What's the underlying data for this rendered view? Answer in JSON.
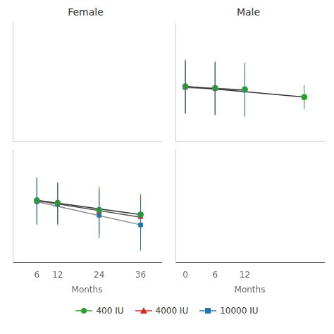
{
  "chart_data": [
    {
      "type": "scatter",
      "title": "Female",
      "xlabel": "Months",
      "x": [
        6,
        12,
        24,
        36
      ],
      "xlim": [
        -1,
        42
      ],
      "xticks": [
        6,
        12,
        24,
        36
      ],
      "ylim": [
        0.58,
        1.45
      ],
      "grid": false,
      "tick_labels": "x",
      "series": [
        {
          "name": "400 IU",
          "color": "#2ca02c",
          "marker": "circle",
          "values": [
            1.06,
            1.04,
            0.985,
            0.95
          ],
          "yerr_low": [
            0.18,
            0.16,
            0.18,
            0.16
          ],
          "yerr_high": [
            0.18,
            0.16,
            0.18,
            0.16
          ]
        },
        {
          "name": "4000 IU",
          "color": "#d62728",
          "marker": "triangle",
          "values": [
            1.058,
            1.038,
            0.97,
            0.93
          ],
          "yerr_low": [
            0.18,
            0.16,
            0.18,
            0.16
          ],
          "yerr_high": [
            0.18,
            0.16,
            0.18,
            0.16
          ]
        },
        {
          "name": "10000 IU",
          "color": "#1f77b4",
          "marker": "square",
          "values": [
            1.05,
            1.028,
            0.945,
            0.87
          ],
          "yerr_low": [
            0.18,
            0.16,
            0.18,
            0.2
          ],
          "yerr_high": [
            0.18,
            0.16,
            0.18,
            0.2
          ]
        },
        {
          "type": "line",
          "color": "#333333",
          "values": [
            1.06,
            null,
            null,
            0.95
          ]
        },
        {
          "type": "line",
          "color": "#555555",
          "values": [
            1.058,
            null,
            null,
            0.93
          ]
        },
        {
          "type": "line",
          "color": "#888888",
          "values": [
            1.05,
            null,
            null,
            0.87
          ]
        }
      ]
    },
    {
      "type": "scatter",
      "title": "Male",
      "xlabel": "Months",
      "x": [
        0,
        6,
        12,
        24
      ],
      "xlim": [
        -2,
        28
      ],
      "xticks": [
        0,
        6,
        12
      ],
      "ylim": [
        0.62,
        1.6
      ],
      "grid": false,
      "tick_labels": "x",
      "series": [
        {
          "name": "400 IU",
          "color": "#2ca02c",
          "marker": "circle",
          "values": [
            1.075,
            1.06,
            1.05,
            0.985
          ],
          "yerr_low": [
            0.22,
            0.22,
            0.22,
            0.1
          ],
          "yerr_high": [
            0.22,
            0.22,
            0.22,
            0.1
          ]
        },
        {
          "name": "4000 IU",
          "color": "#d62728",
          "marker": "triangle",
          "values": [
            1.07,
            1.058,
            1.046,
            null
          ],
          "yerr_low": [
            0.22,
            0.22,
            0.22,
            null
          ],
          "yerr_high": [
            0.22,
            0.22,
            0.22,
            null
          ]
        },
        {
          "name": "10000 IU",
          "color": "#1f77b4",
          "marker": "square",
          "values": [
            1.065,
            1.055,
            1.042,
            null
          ],
          "yerr_low": [
            0.22,
            0.22,
            0.22,
            null
          ],
          "yerr_high": [
            0.22,
            0.22,
            0.22,
            null
          ]
        },
        {
          "type": "line",
          "color": "#333333",
          "values": [
            1.075,
            null,
            null,
            0.985
          ]
        },
        {
          "type": "line",
          "color": "#555555",
          "values": [
            1.07,
            null,
            1.046,
            null
          ]
        },
        {
          "type": "line",
          "color": "#777777",
          "values": [
            1.065,
            null,
            1.042,
            null
          ]
        }
      ]
    }
  ]
}
